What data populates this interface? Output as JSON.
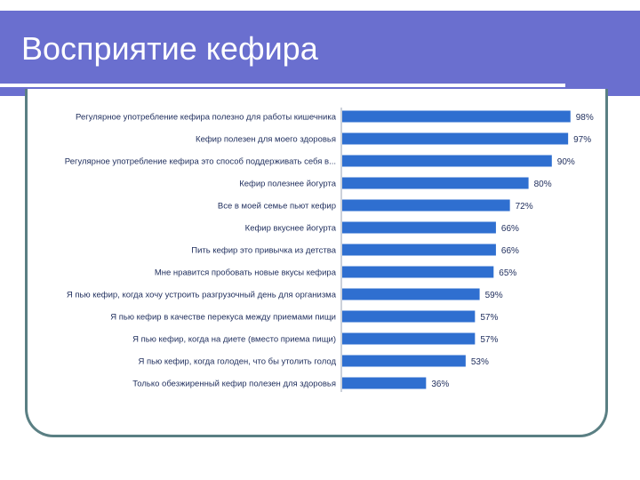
{
  "slide": {
    "title": "Восприятие кефира"
  },
  "colors": {
    "header_band": "#6a6fcf",
    "bar_fill": "#2f6fd0",
    "frame_border": "#5a7f83",
    "label_text": "#1e2d5c"
  },
  "chart_data": {
    "type": "bar",
    "orientation": "horizontal",
    "title": "",
    "xlabel": "",
    "ylabel": "",
    "xlim": [
      0,
      100
    ],
    "grid": false,
    "legend": "none",
    "categories": [
      "Регулярное употребление кефира полезно для работы кишечника",
      "Кефир полезен для моего здоровья",
      "Регулярное употребление кефира это способ поддерживать себя в...",
      "Кефир полезнее йогурта",
      "Все в моей семье пьют кефир",
      "Кефир вкуснее йогурта",
      "Пить кефир это привычка из детства",
      "Мне нравится пробовать новые вкусы кефира",
      "Я пью кефир, когда хочу устроить разгрузочный день для организма",
      "Я пью кефир в качестве перекуса между приемами пищи",
      "Я пью кефир, когда на диете (вместо приема пищи)",
      "Я пью кефир, когда голоден, что бы утолить голод",
      "Только обезжиренный кефир полезен для здоровья"
    ],
    "values": [
      98,
      97,
      90,
      80,
      72,
      66,
      66,
      65,
      59,
      57,
      57,
      53,
      36
    ],
    "value_labels": [
      "98%",
      "97%",
      "90%",
      "80%",
      "72%",
      "66%",
      "66%",
      "65%",
      "59%",
      "57%",
      "57%",
      "53%",
      "36%"
    ]
  }
}
